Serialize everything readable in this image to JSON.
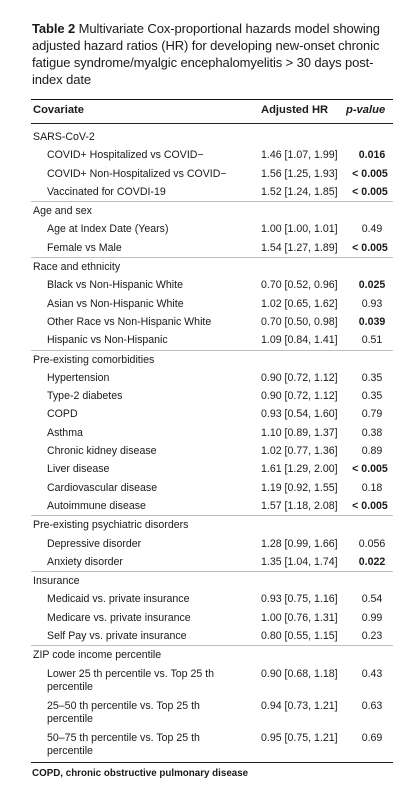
{
  "caption": {
    "label": "Table 2",
    "text": "Multivariate Cox-proportional hazards model showing adjusted hazard ratios (HR) for developing new-onset chronic fatigue syndrome/myalgic encephalomyelitis > 30 days post-index date"
  },
  "columns": {
    "covariate": "Covariate",
    "hr": "Adjusted HR",
    "p": "p-value"
  },
  "sections": [
    {
      "title": "SARS-CoV-2",
      "rows": [
        {
          "label": "COVID+ Hospitalized vs COVID−",
          "hr": "1.46 [1.07, 1.99]",
          "p": "0.016",
          "sig": true
        },
        {
          "label": "COVID+ Non-Hospitalized vs COVID−",
          "hr": "1.56 [1.25, 1.93]",
          "p": "< 0.005",
          "sig": true
        },
        {
          "label": "Vaccinated for COVDI-19",
          "hr": "1.52 [1.24, 1.85]",
          "p": "< 0.005",
          "sig": true
        }
      ]
    },
    {
      "title": "Age and sex",
      "rows": [
        {
          "label": "Age at Index Date (Years)",
          "hr": "1.00 [1.00, 1.01]",
          "p": "0.49",
          "sig": false
        },
        {
          "label": "Female vs Male",
          "hr": "1.54 [1.27, 1.89]",
          "p": "< 0.005",
          "sig": true
        }
      ]
    },
    {
      "title": "Race and ethnicity",
      "rows": [
        {
          "label": "Black vs Non-Hispanic White",
          "hr": "0.70 [0.52, 0.96]",
          "p": "0.025",
          "sig": true
        },
        {
          "label": "Asian vs Non-Hispanic White",
          "hr": "1.02 [0.65, 1.62]",
          "p": "0.93",
          "sig": false
        },
        {
          "label": "Other Race vs Non-Hispanic White",
          "hr": "0.70 [0.50, 0.98]",
          "p": "0.039",
          "sig": true
        },
        {
          "label": "Hispanic vs Non-Hispanic",
          "hr": "1.09 [0.84, 1.41]",
          "p": "0.51",
          "sig": false
        }
      ]
    },
    {
      "title": "Pre-existing comorbidities",
      "rows": [
        {
          "label": "Hypertension",
          "hr": "0.90 [0.72, 1.12]",
          "p": "0.35",
          "sig": false
        },
        {
          "label": "Type-2 diabetes",
          "hr": "0.90 [0.72, 1.12]",
          "p": "0.35",
          "sig": false
        },
        {
          "label": "COPD",
          "hr": "0.93 [0.54, 1.60]",
          "p": "0.79",
          "sig": false
        },
        {
          "label": "Asthma",
          "hr": "1.10 [0.89, 1.37]",
          "p": "0.38",
          "sig": false
        },
        {
          "label": "Chronic kidney disease",
          "hr": "1.02 [0.77, 1.36]",
          "p": "0.89",
          "sig": false
        },
        {
          "label": "Liver disease",
          "hr": "1.61 [1.29, 2.00]",
          "p": "< 0.005",
          "sig": true
        },
        {
          "label": "Cardiovascular disease",
          "hr": "1.19 [0.92, 1.55]",
          "p": "0.18",
          "sig": false
        },
        {
          "label": "Autoimmune disease",
          "hr": "1.57 [1.18, 2.08]",
          "p": "< 0.005",
          "sig": true
        }
      ]
    },
    {
      "title": "Pre-existing psychiatric disorders",
      "rows": [
        {
          "label": "Depressive disorder",
          "hr": "1.28 [0.99, 1.66]",
          "p": "0.056",
          "sig": false
        },
        {
          "label": "Anxiety disorder",
          "hr": "1.35 [1.04, 1.74]",
          "p": "0.022",
          "sig": true
        }
      ]
    },
    {
      "title": "Insurance",
      "rows": [
        {
          "label": "Medicaid vs. private insurance",
          "hr": "0.93 [0.75, 1.16]",
          "p": "0.54",
          "sig": false
        },
        {
          "label": "Medicare vs. private insurance",
          "hr": "1.00 [0.76, 1.31]",
          "p": "0.99",
          "sig": false
        },
        {
          "label": "Self Pay vs. private insurance",
          "hr": "0.80 [0.55, 1.15]",
          "p": "0.23",
          "sig": false
        }
      ]
    },
    {
      "title": "ZIP code income percentile",
      "rows": [
        {
          "label": "Lower 25 th percentile vs. Top 25 th percentile",
          "hr": "0.90 [0.68, 1.18]",
          "p": "0.43",
          "sig": false,
          "tall": true
        },
        {
          "label": "25–50 th percentile vs. Top 25 th percentile",
          "hr": "0.94 [0.73, 1.21]",
          "p": "0.63",
          "sig": false,
          "tall": true
        },
        {
          "label": "50–75 th percentile vs. Top 25 th percentile",
          "hr": "0.95 [0.75, 1.21]",
          "p": "0.69",
          "sig": false,
          "tall": true
        }
      ]
    }
  ],
  "footnote": "COPD, chronic obstructive pulmonary disease"
}
